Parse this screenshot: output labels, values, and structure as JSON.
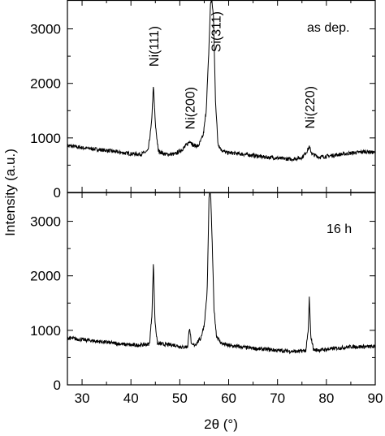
{
  "chart_data": {
    "type": "line",
    "ylabel": "Intensity (a.u.)",
    "xlabel": "2θ (°)",
    "xlim": [
      27,
      90
    ],
    "xticks": [
      30,
      40,
      50,
      60,
      70,
      80,
      90
    ],
    "ylim": [
      0,
      3500
    ],
    "yticks": [
      0,
      1000,
      2000,
      3000
    ],
    "grid": false,
    "panels": [
      {
        "label": "as dep.",
        "annotations": [
          {
            "text": "Ni(111)",
            "x": 44.6
          },
          {
            "text": "Ni(200)",
            "x": 52.0
          },
          {
            "text": "Si(311)",
            "x": 57.3
          },
          {
            "text": "Ni(220)",
            "x": 76.5
          }
        ],
        "series": [
          {
            "x": [
              27,
              30,
              33,
              36,
              38,
              40,
              42,
              43.5,
              44.2,
              44.6,
              45.0,
              45.6,
              47,
              49,
              50.5,
              51.5,
              52.1,
              52.8,
              53.8,
              54.8,
              55.4,
              55.9,
              56.3,
              56.6,
              56.9,
              57.3,
              57.8,
              58.5,
              59.5,
              61,
              63,
              65,
              67,
              69,
              71,
              73,
              75,
              75.9,
              76.5,
              77.1,
              78.5,
              80,
              82,
              84,
              86,
              88,
              90
            ],
            "y": [
              860,
              820,
              790,
              760,
              730,
              710,
              700,
              760,
              1250,
              1950,
              1250,
              760,
              700,
              700,
              790,
              880,
              950,
              860,
              850,
              1050,
              1500,
              2500,
              3500,
              3500,
              3200,
              1700,
              900,
              780,
              730,
              720,
              700,
              680,
              650,
              640,
              620,
              610,
              640,
              740,
              830,
              700,
              650,
              660,
              690,
              710,
              730,
              750,
              730
            ]
          }
        ]
      },
      {
        "label": "16 h",
        "annotations": [],
        "series": [
          {
            "x": [
              27,
              30,
              33,
              36,
              38,
              40,
              42,
              43.8,
              44.3,
              44.6,
              44.9,
              45.4,
              47,
              49,
              50.5,
              51.6,
              52.0,
              52.4,
              53.2,
              54.3,
              55.0,
              55.6,
              56.0,
              56.3,
              56.6,
              57.0,
              57.5,
              58.5,
              60,
              62,
              64,
              66,
              68,
              70,
              72,
              74,
              75.8,
              76.3,
              76.5,
              76.8,
              77.4,
              79,
              81,
              83,
              85,
              87,
              90
            ],
            "y": [
              860,
              830,
              800,
              770,
              750,
              730,
              730,
              750,
              1300,
              2250,
              1200,
              760,
              740,
              730,
              690,
              700,
              1070,
              720,
              740,
              860,
              1100,
              1700,
              3500,
              3500,
              2700,
              1400,
              900,
              760,
              720,
              700,
              680,
              660,
              650,
              630,
              620,
              610,
              630,
              1000,
              1600,
              900,
              640,
              640,
              660,
              680,
              700,
              700,
              700
            ]
          }
        ]
      }
    ]
  }
}
